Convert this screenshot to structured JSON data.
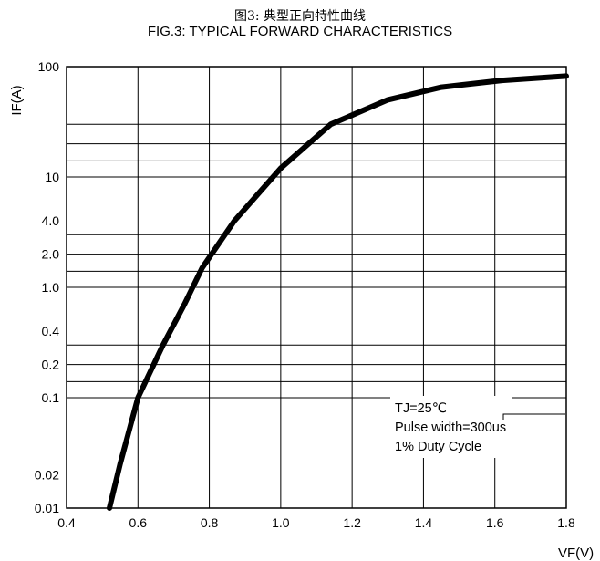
{
  "title": {
    "cn": "图3: 典型正向特性曲线",
    "en": "FIG.3: TYPICAL FORWARD CHARACTERISTICS"
  },
  "colors": {
    "curve": "#000000",
    "grid": "#000000",
    "background": "#ffffff"
  },
  "chart_data": {
    "type": "line",
    "title": "FIG.3: TYPICAL FORWARD CHARACTERISTICS",
    "xlabel": "VF(V)",
    "ylabel": "IF(A)",
    "xlim": [
      0.4,
      1.8
    ],
    "ylim": [
      0.01,
      100
    ],
    "yscale": "log",
    "grid": true,
    "x_ticks": [
      0.4,
      0.6,
      0.8,
      1.0,
      1.2,
      1.4,
      1.6,
      1.8
    ],
    "x_tick_labels": [
      "0.4",
      "0.6",
      "0.8",
      "1.0",
      "1.2",
      "1.4",
      "1.6",
      "1.8"
    ],
    "y_ticks": [
      0.01,
      0.02,
      0.1,
      0.2,
      0.4,
      1.0,
      2.0,
      4.0,
      10,
      100
    ],
    "y_tick_labels": [
      "0.01",
      "0.02",
      "0.1",
      "0.2",
      "0.4",
      "1.0",
      "2.0",
      "4.0",
      "10",
      "100"
    ],
    "y_gridlines": [
      0.01,
      0.1,
      0.14,
      0.2,
      0.3,
      1.0,
      1.4,
      2.0,
      3.0,
      10,
      14,
      20,
      30,
      100
    ],
    "series": [
      {
        "x": [
          0.52,
          0.55,
          0.6,
          0.67,
          0.73,
          0.78,
          0.87,
          1.0,
          1.14,
          1.3,
          1.45,
          1.62,
          1.8
        ],
        "y": [
          0.01,
          0.025,
          0.1,
          0.3,
          0.7,
          1.5,
          4.0,
          12,
          30,
          50,
          65,
          75,
          82
        ]
      }
    ],
    "annotations": [
      "TJ=25℃",
      "Pulse width=300us",
      "1% Duty Cycle"
    ]
  }
}
